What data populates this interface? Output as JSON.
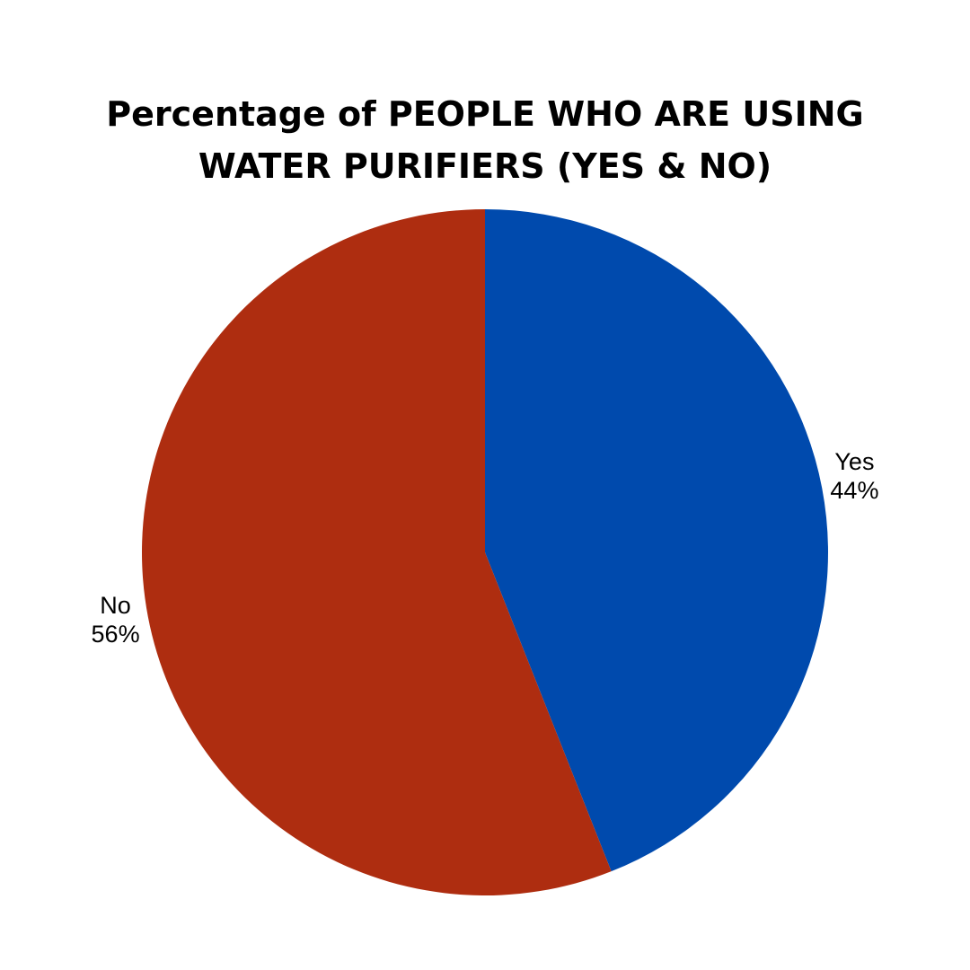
{
  "chart_data": {
    "type": "pie",
    "title_lines": [
      "Percentage of PEOPLE WHO ARE USING",
      "WATER PURIFIERS (YES & NO)"
    ],
    "slices": [
      {
        "label": "Yes",
        "value": 44,
        "value_label": "44%",
        "color": "#004AAD"
      },
      {
        "label": "No",
        "value": 56,
        "value_label": "56%",
        "color": "#AE2D10"
      }
    ],
    "start": "12 o'clock",
    "direction": "clockwise",
    "legend": "none"
  }
}
